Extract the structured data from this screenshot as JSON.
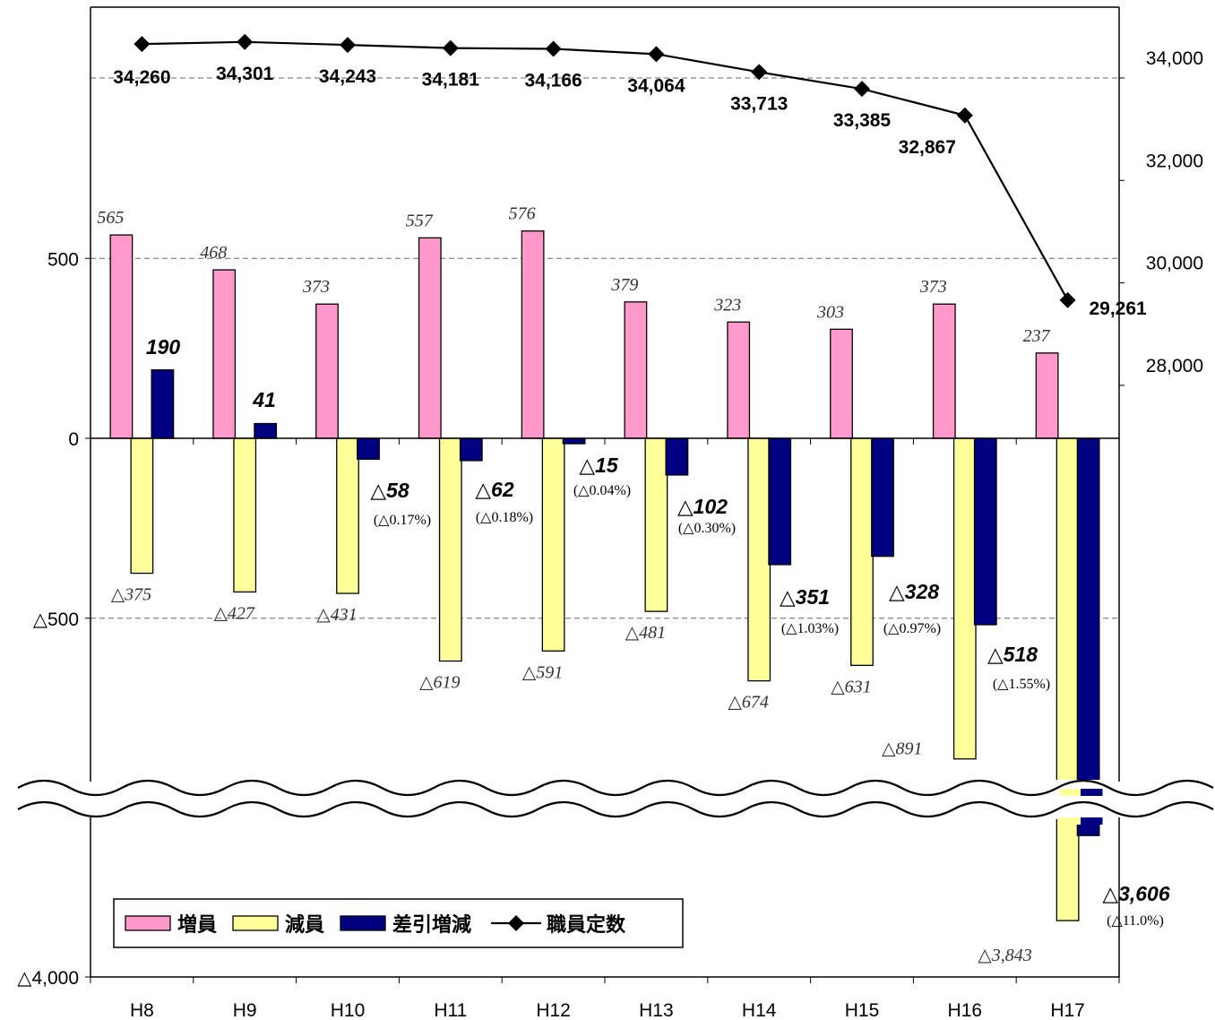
{
  "chart_data": {
    "type": "bar",
    "categories": [
      "H8",
      "H9",
      "H10",
      "H11",
      "H12",
      "H13",
      "H14",
      "H15",
      "H16",
      "H17"
    ],
    "series": [
      {
        "name": "増員",
        "kind": "bar",
        "axis": "left",
        "color": "#ff99cc",
        "values": [
          565,
          468,
          373,
          557,
          576,
          379,
          323,
          303,
          373,
          237
        ],
        "labels": [
          "565",
          "468",
          "373",
          "557",
          "576",
          "379",
          "323",
          "303",
          "373",
          "237"
        ]
      },
      {
        "name": "減員",
        "kind": "bar",
        "axis": "left",
        "color": "#ffff99",
        "values": [
          -375,
          -427,
          -431,
          -619,
          -591,
          -481,
          -674,
          -631,
          -891,
          -3843
        ],
        "labels": [
          "△375",
          "△427",
          "△431",
          "△619",
          "△591",
          "△481",
          "△674",
          "△631",
          "△891",
          "△3,843"
        ]
      },
      {
        "name": "差引増減",
        "kind": "bar",
        "axis": "left",
        "color": "#000080",
        "values": [
          190,
          41,
          -58,
          -62,
          -15,
          -102,
          -351,
          -328,
          -518,
          -3606
        ],
        "labels": [
          "190",
          "41",
          "△58",
          "△62",
          "△15",
          "△102",
          "△351",
          "△328",
          "△518",
          "△3,606"
        ],
        "percent_labels": [
          "",
          "",
          "(△0.17%)",
          "(△0.18%)",
          "(△0.04%)",
          "(△0.30%)",
          "(△1.03%)",
          "(△0.97%)",
          "(△1.55%)",
          "(△11.0%)"
        ]
      },
      {
        "name": "職員定数",
        "kind": "line",
        "axis": "right",
        "color": "#000000",
        "marker": "diamond",
        "values": [
          34260,
          34301,
          34243,
          34181,
          34166,
          34064,
          33713,
          33385,
          32867,
          29261
        ],
        "labels": [
          "34,260",
          "34,301",
          "34,243",
          "34,181",
          "34,166",
          "34,064",
          "33,713",
          "33,385",
          "32,867",
          "29,261"
        ]
      }
    ],
    "y_left": {
      "upper_segment": [
        -1000,
        1000
      ],
      "lower_segment": [
        -4000,
        -3500
      ],
      "axis_break": true,
      "ticks": [
        500,
        0,
        -500,
        -4000
      ],
      "tick_labels": [
        "500",
        "0",
        "△500",
        "△4,000"
      ]
    },
    "y_right": {
      "range": [
        26500,
        35000
      ],
      "ticks": [
        34000,
        32000,
        30000,
        28000
      ],
      "tick_labels": [
        "34,000",
        "32,000",
        "30,000",
        "28,000"
      ]
    },
    "grid": "dashed horizontal at 500, -500 and 34,000",
    "legend_position": "bottom-left"
  }
}
